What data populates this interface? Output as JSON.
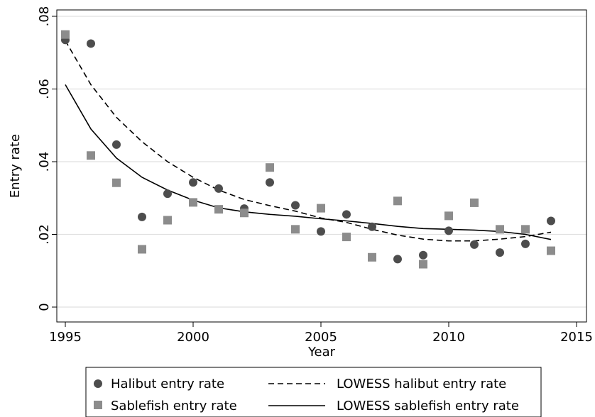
{
  "chart_data": {
    "type": "scatter",
    "xlabel": "Year",
    "ylabel": "Entry rate",
    "xlim": [
      1995,
      2015
    ],
    "ylim": [
      0,
      0.08
    ],
    "x_ticks": [
      1995,
      2000,
      2005,
      2010,
      2015
    ],
    "x_tick_labels": [
      "1995",
      "2000",
      "2005",
      "2010",
      "2015"
    ],
    "y_ticks": [
      0,
      0.02,
      0.04,
      0.06,
      0.08
    ],
    "y_tick_labels": [
      "0",
      ".02",
      ".04",
      ".06",
      ".08"
    ],
    "grid": "horizontal",
    "legend_position": "bottom",
    "series": [
      {
        "name": "Halibut entry rate",
        "kind": "scatter",
        "marker": "circle",
        "color": "#4d4d4d",
        "x": [
          1995,
          1996,
          1997,
          1998,
          1999,
          2000,
          2001,
          2002,
          2003,
          2004,
          2005,
          2006,
          2007,
          2008,
          2009,
          2010,
          2011,
          2012,
          2013,
          2014
        ],
        "y": [
          0.0735,
          0.0725,
          0.0447,
          0.0248,
          0.0312,
          0.0343,
          0.0326,
          0.0271,
          0.0343,
          0.028,
          0.0208,
          0.0255,
          0.0221,
          0.0132,
          0.0143,
          0.021,
          0.0172,
          0.015,
          0.0174,
          0.0237
        ]
      },
      {
        "name": "Sablefish entry rate",
        "kind": "scatter",
        "marker": "square",
        "color": "#8c8c8c",
        "x": [
          1995,
          1996,
          1997,
          1998,
          1999,
          2000,
          2001,
          2002,
          2003,
          2004,
          2005,
          2006,
          2007,
          2008,
          2009,
          2010,
          2011,
          2012,
          2013,
          2014
        ],
        "y": [
          0.075,
          0.0417,
          0.0342,
          0.0159,
          0.0239,
          0.0288,
          0.0269,
          0.0259,
          0.0384,
          0.0214,
          0.0272,
          0.0193,
          0.0137,
          0.0292,
          0.0118,
          0.0251,
          0.0287,
          0.0214,
          0.0214,
          0.0155
        ]
      },
      {
        "name": "LOWESS halibut entry rate",
        "kind": "line",
        "dash": "dashed",
        "color": "#000000",
        "x": [
          1995,
          1996,
          1997,
          1998,
          1999,
          2000,
          2001,
          2002,
          2003,
          2004,
          2005,
          2006,
          2007,
          2008,
          2009,
          2010,
          2011,
          2012,
          2013,
          2014
        ],
        "y": [
          0.0733,
          0.0612,
          0.0522,
          0.0455,
          0.04,
          0.0357,
          0.0322,
          0.0296,
          0.0279,
          0.0264,
          0.0245,
          0.0233,
          0.0214,
          0.0198,
          0.0187,
          0.0182,
          0.0182,
          0.0187,
          0.0194,
          0.0206
        ]
      },
      {
        "name": "LOWESS sablefish entry rate",
        "kind": "line",
        "dash": "solid",
        "color": "#000000",
        "x": [
          1995,
          1996,
          1997,
          1998,
          1999,
          2000,
          2001,
          2002,
          2003,
          2004,
          2005,
          2006,
          2007,
          2008,
          2009,
          2010,
          2011,
          2012,
          2013,
          2014
        ],
        "y": [
          0.0612,
          0.049,
          0.041,
          0.0357,
          0.0322,
          0.0294,
          0.0273,
          0.0262,
          0.0255,
          0.025,
          0.0243,
          0.0237,
          0.023,
          0.0222,
          0.0216,
          0.0214,
          0.0212,
          0.0208,
          0.02,
          0.0186
        ]
      }
    ]
  }
}
